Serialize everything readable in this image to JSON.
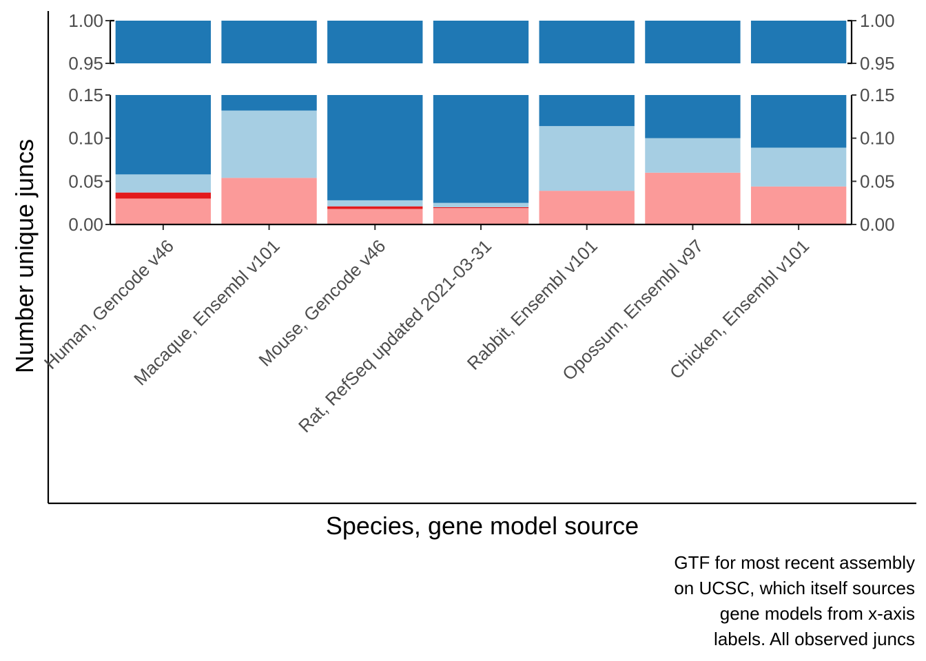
{
  "chart_data": {
    "type": "bar",
    "stacked": true,
    "y_axis_break": true,
    "xlabel": "Species, gene model source",
    "ylabel": "Number unique juncs",
    "caption": [
      "GTF for most recent assembly",
      "on UCSC, which itself sources",
      "gene models from x-axis",
      "labels. All observed juncs"
    ],
    "categories": [
      "Human, Gencode v46",
      "Macaque, Ensembl v101",
      "Mouse, Gencode v46",
      "Rat, RefSeq updated 2021-03-31",
      "Rabbit, Ensembl v101",
      "Opossum, Ensembl v97",
      "Chicken, Ensembl v101"
    ],
    "series": [
      {
        "color": "#fb9a99",
        "values": [
          0.03,
          0.054,
          0.018,
          0.019,
          0.039,
          0.06,
          0.044
        ]
      },
      {
        "color": "#e31a1c",
        "values": [
          0.007,
          0.0,
          0.003,
          0.001,
          0.0,
          0.0,
          0.0
        ]
      },
      {
        "color": "#a6cee3",
        "values": [
          0.021,
          0.078,
          0.007,
          0.005,
          0.075,
          0.04,
          0.045
        ]
      },
      {
        "color": "#1f78b4",
        "values": [
          0.942,
          0.868,
          0.972,
          0.975,
          0.886,
          0.9,
          0.911
        ]
      }
    ],
    "ylim_lower": [
      0,
      0.15
    ],
    "ylim_upper": [
      0.95,
      1.0
    ],
    "yticks_lower": [
      "0.00",
      "0.05",
      "0.10",
      "0.15"
    ],
    "yticks_upper": [
      "0.95",
      "1.00"
    ],
    "grid": false,
    "legend": "none"
  }
}
